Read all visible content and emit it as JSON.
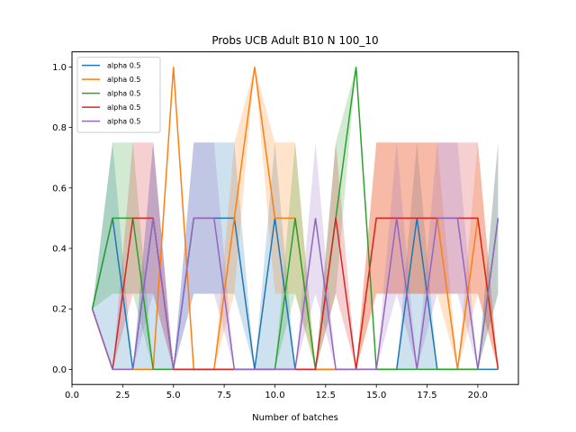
{
  "chart_data": {
    "type": "line",
    "title": "Probs UCB Adult B10 N 100_10",
    "xlabel": "Number of batches",
    "ylabel": "",
    "xlim": [
      0,
      22
    ],
    "ylim": [
      -0.05,
      1.05
    ],
    "xticks": [
      0.0,
      2.5,
      5.0,
      7.5,
      10.0,
      12.5,
      15.0,
      17.5,
      20.0
    ],
    "xtick_labels": [
      "0.0",
      "2.5",
      "5.0",
      "7.5",
      "10.0",
      "12.5",
      "15.0",
      "17.5",
      "20.0"
    ],
    "yticks": [
      0.0,
      0.2,
      0.4,
      0.6,
      0.8,
      1.0
    ],
    "ytick_labels": [
      "0.0",
      "0.2",
      "0.4",
      "0.6",
      "0.8",
      "1.0"
    ],
    "grid": false,
    "legend_position": "upper-left",
    "x": [
      1,
      2,
      3,
      4,
      5,
      6,
      7,
      8,
      9,
      10,
      11,
      12,
      13,
      14,
      15,
      16,
      17,
      18,
      19,
      20,
      21
    ],
    "series": [
      {
        "name": "alpha 0.5",
        "color": "#1f77b4",
        "values": [
          0.2,
          0.5,
          0,
          0.5,
          0,
          0.5,
          0.5,
          0.5,
          0,
          0.5,
          0,
          0,
          0,
          0,
          0,
          0,
          0.5,
          0,
          0,
          0,
          0
        ],
        "lower": [
          0.2,
          0,
          0,
          0,
          0,
          0.25,
          0.25,
          0.25,
          0,
          0,
          0,
          0,
          0,
          0,
          0,
          0,
          0,
          0,
          0,
          0,
          0
        ],
        "upper": [
          0.2,
          0.75,
          0,
          0.75,
          0,
          0.75,
          0.75,
          0.75,
          0,
          0.75,
          0,
          0,
          0,
          0,
          0,
          0,
          0.75,
          0,
          0,
          0,
          0
        ]
      },
      {
        "name": "alpha 0.5",
        "color": "#ff7f0e",
        "values": [
          0.2,
          0,
          0,
          0,
          1.0,
          0,
          0,
          0.5,
          1.0,
          0.5,
          0.5,
          0,
          0,
          0,
          0.5,
          0.5,
          0.5,
          0.5,
          0,
          0.5,
          0
        ],
        "lower": [
          0.2,
          0,
          0,
          0,
          1.0,
          0,
          0,
          0.25,
          1.0,
          0.25,
          0.25,
          0,
          0,
          0,
          0.25,
          0.25,
          0.25,
          0.25,
          0,
          0.25,
          0
        ],
        "upper": [
          0.2,
          0,
          0,
          0,
          1.0,
          0,
          0,
          0.75,
          1.0,
          0.75,
          0.75,
          0,
          0,
          0,
          0.75,
          0.75,
          0.75,
          0.75,
          0,
          0.75,
          0
        ]
      },
      {
        "name": "alpha 0.5",
        "color": "#2ca02c",
        "values": [
          0.2,
          0.5,
          0.5,
          0,
          0,
          0,
          0,
          0,
          0,
          0,
          0.5,
          0,
          0.5,
          1.0,
          0,
          0,
          0,
          0,
          0,
          0,
          0.5
        ],
        "lower": [
          0.2,
          0.25,
          0.25,
          0,
          0,
          0,
          0,
          0,
          0,
          0,
          0.25,
          0,
          0.25,
          1.0,
          0,
          0,
          0,
          0,
          0,
          0,
          0.25
        ],
        "upper": [
          0.2,
          0.75,
          0.75,
          0,
          0,
          0,
          0,
          0,
          0,
          0,
          0.75,
          0,
          0.75,
          1.0,
          0,
          0,
          0,
          0,
          0,
          0,
          0.75
        ]
      },
      {
        "name": "alpha 0.5",
        "color": "#d62728",
        "values": [
          0.2,
          0,
          0.5,
          0.5,
          0,
          0,
          0,
          0,
          0,
          0,
          0,
          0,
          0.5,
          0,
          0.5,
          0.5,
          0.5,
          0.5,
          0.5,
          0.5,
          0
        ],
        "lower": [
          0.2,
          0,
          0.25,
          0.25,
          0,
          0,
          0,
          0,
          0,
          0,
          0,
          0,
          0.25,
          0,
          0.25,
          0.25,
          0.25,
          0.25,
          0.25,
          0.25,
          0
        ],
        "upper": [
          0.2,
          0,
          0.75,
          0.75,
          0,
          0,
          0,
          0,
          0,
          0,
          0,
          0,
          0.75,
          0,
          0.75,
          0.75,
          0.75,
          0.75,
          0.75,
          0.75,
          0
        ]
      },
      {
        "name": "alpha 0.5",
        "color": "#9467bd",
        "values": [
          0.2,
          0,
          0,
          0.5,
          0,
          0.5,
          0.5,
          0,
          0,
          0,
          0,
          0.5,
          0,
          0,
          0,
          0.5,
          0,
          0.5,
          0.5,
          0,
          0.5
        ],
        "lower": [
          0.2,
          0,
          0,
          0.25,
          0,
          0.25,
          0.25,
          0,
          0,
          0,
          0,
          0.25,
          0,
          0,
          0,
          0.25,
          0,
          0.25,
          0.25,
          0,
          0.25
        ],
        "upper": [
          0.2,
          0,
          0,
          0.75,
          0,
          0.75,
          0.75,
          0,
          0,
          0,
          0,
          0.75,
          0,
          0,
          0,
          0.75,
          0,
          0.75,
          0.75,
          0,
          0.75
        ]
      }
    ]
  }
}
